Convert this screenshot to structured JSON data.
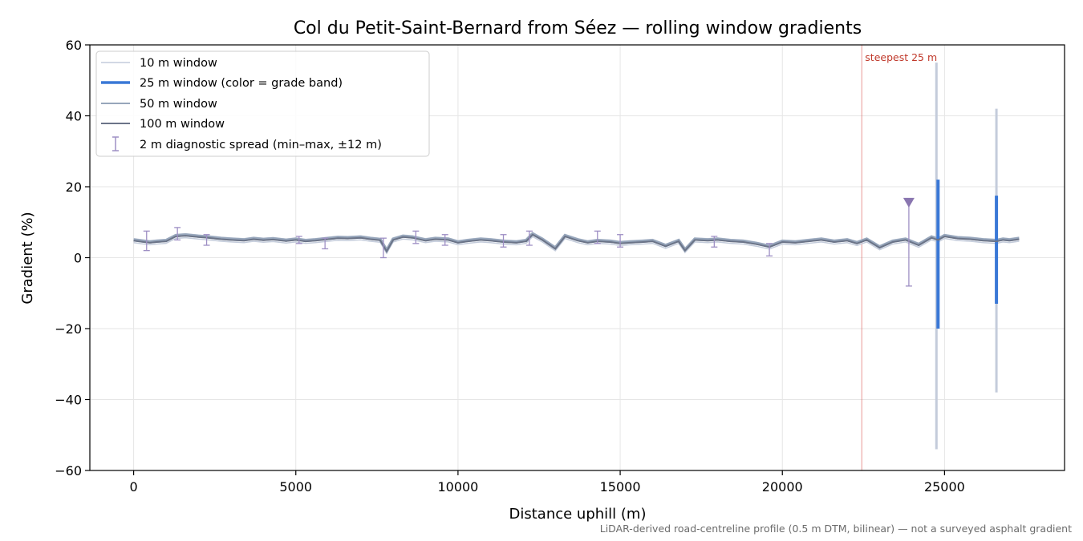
{
  "chart_data": {
    "type": "line",
    "title": "Col du Petit-Saint-Bernard from Séez — rolling window gradients",
    "xlabel": "Distance uphill (m)",
    "ylabel": "Gradient (%)",
    "xlim": [
      -1350,
      28700
    ],
    "ylim": [
      -60,
      60
    ],
    "xticks": [
      0,
      5000,
      10000,
      15000,
      20000,
      25000
    ],
    "xtick_labels": [
      "0",
      "5000",
      "10000",
      "15000",
      "20000",
      "25000"
    ],
    "yticks": [
      -60,
      -40,
      -20,
      0,
      20,
      40,
      60
    ],
    "ytick_labels": [
      "−60",
      "−40",
      "−20",
      "0",
      "20",
      "40",
      "60"
    ],
    "grid": true,
    "legend_position": "top-left",
    "legend": [
      {
        "label": "10 m window",
        "color": "#c4ccdb",
        "style": "thin-line"
      },
      {
        "label": "25 m window (color = grade band)",
        "color": "#3a78d6",
        "style": "thick-line"
      },
      {
        "label": "50 m window",
        "color": "#97a6bb",
        "style": "line"
      },
      {
        "label": "100 m window",
        "color": "#6b7488",
        "style": "line"
      },
      {
        "label": "2 m diagnostic spread (min–max, ±12 m)",
        "color": "#9e8fc4",
        "style": "errorbar"
      }
    ],
    "annotation": {
      "text": "steepest 25 m",
      "x": 22450,
      "color": "#d9534f"
    },
    "series": [
      {
        "window": "100 m",
        "x": [
          0,
          250,
          500,
          700,
          1000,
          1300,
          1600,
          2000,
          2300,
          2700,
          3000,
          3400,
          3700,
          4000,
          4300,
          4700,
          5000,
          5300,
          5600,
          6000,
          6300,
          6600,
          7000,
          7300,
          7600,
          7800,
          8000,
          8300,
          8600,
          9000,
          9300,
          9700,
          10000,
          10300,
          10700,
          11000,
          11400,
          11800,
          12100,
          12300,
          12600,
          13000,
          13300,
          13700,
          14000,
          14300,
          14700,
          15000,
          15300,
          15700,
          16000,
          16400,
          16800,
          17000,
          17300,
          17700,
          18000,
          18400,
          18800,
          19200,
          19600,
          20000,
          20400,
          20800,
          21200,
          21600,
          22000,
          22300,
          22600,
          23000,
          23400,
          23800,
          24200,
          24600,
          24800,
          25000,
          25400,
          25800,
          26200,
          26600,
          26800,
          27000,
          27300
        ],
        "y": [
          4.8,
          4.5,
          4.2,
          4.4,
          4.6,
          6.0,
          6.2,
          5.8,
          5.6,
          5.2,
          5.0,
          4.8,
          5.2,
          4.9,
          5.1,
          4.7,
          5.0,
          4.6,
          4.8,
          5.2,
          5.5,
          5.4,
          5.6,
          5.2,
          4.9,
          1.8,
          5.0,
          5.8,
          5.6,
          4.8,
          5.2,
          5.0,
          4.2,
          4.6,
          5.0,
          4.8,
          4.4,
          4.2,
          4.6,
          6.5,
          5.0,
          2.5,
          6.0,
          4.8,
          4.2,
          4.6,
          4.4,
          4.0,
          4.2,
          4.4,
          4.6,
          3.2,
          4.6,
          2.0,
          5.0,
          4.8,
          5.0,
          4.6,
          4.4,
          3.8,
          3.0,
          4.4,
          4.2,
          4.6,
          5.0,
          4.4,
          4.8,
          4.0,
          5.0,
          2.8,
          4.4,
          5.0,
          3.5,
          5.6,
          5.0,
          6.0,
          5.4,
          5.2,
          4.8,
          4.6,
          5.0,
          4.8,
          5.2
        ]
      }
    ],
    "spikes_25m": [
      {
        "x": 24800,
        "min": -20,
        "max": 22
      },
      {
        "x": 26600,
        "min": -13,
        "max": 17.5
      }
    ],
    "spikes_10m": [
      {
        "x": 24750,
        "min": -54,
        "max": 55
      },
      {
        "x": 26600,
        "min": -38,
        "max": 42
      }
    ],
    "diagnostic_spread": [
      {
        "x": 400,
        "min": 2,
        "max": 7.5
      },
      {
        "x": 1350,
        "min": 5,
        "max": 8.5
      },
      {
        "x": 2250,
        "min": 3.5,
        "max": 6.5
      },
      {
        "x": 5100,
        "min": 4,
        "max": 6
      },
      {
        "x": 5900,
        "min": 2.5,
        "max": 5.5
      },
      {
        "x": 7700,
        "min": 0,
        "max": 5.5
      },
      {
        "x": 8700,
        "min": 4,
        "max": 7.5
      },
      {
        "x": 9600,
        "min": 3.5,
        "max": 6.5
      },
      {
        "x": 11400,
        "min": 3,
        "max": 6.5
      },
      {
        "x": 12200,
        "min": 3.5,
        "max": 7.5
      },
      {
        "x": 14300,
        "min": 4,
        "max": 7.5
      },
      {
        "x": 15000,
        "min": 3,
        "max": 6.5
      },
      {
        "x": 17900,
        "min": 3,
        "max": 6
      },
      {
        "x": 19600,
        "min": 0.5,
        "max": 4
      },
      {
        "x": 23900,
        "min": -8,
        "max": 16
      }
    ],
    "markers": [
      {
        "x": 23900,
        "y": 15.5,
        "shape": "triangle-down",
        "color": "#8a76b0"
      }
    ],
    "footnote": "LiDAR-derived road-centreline profile (0.5 m DTM, bilinear) — not a surveyed asphalt gradient"
  }
}
